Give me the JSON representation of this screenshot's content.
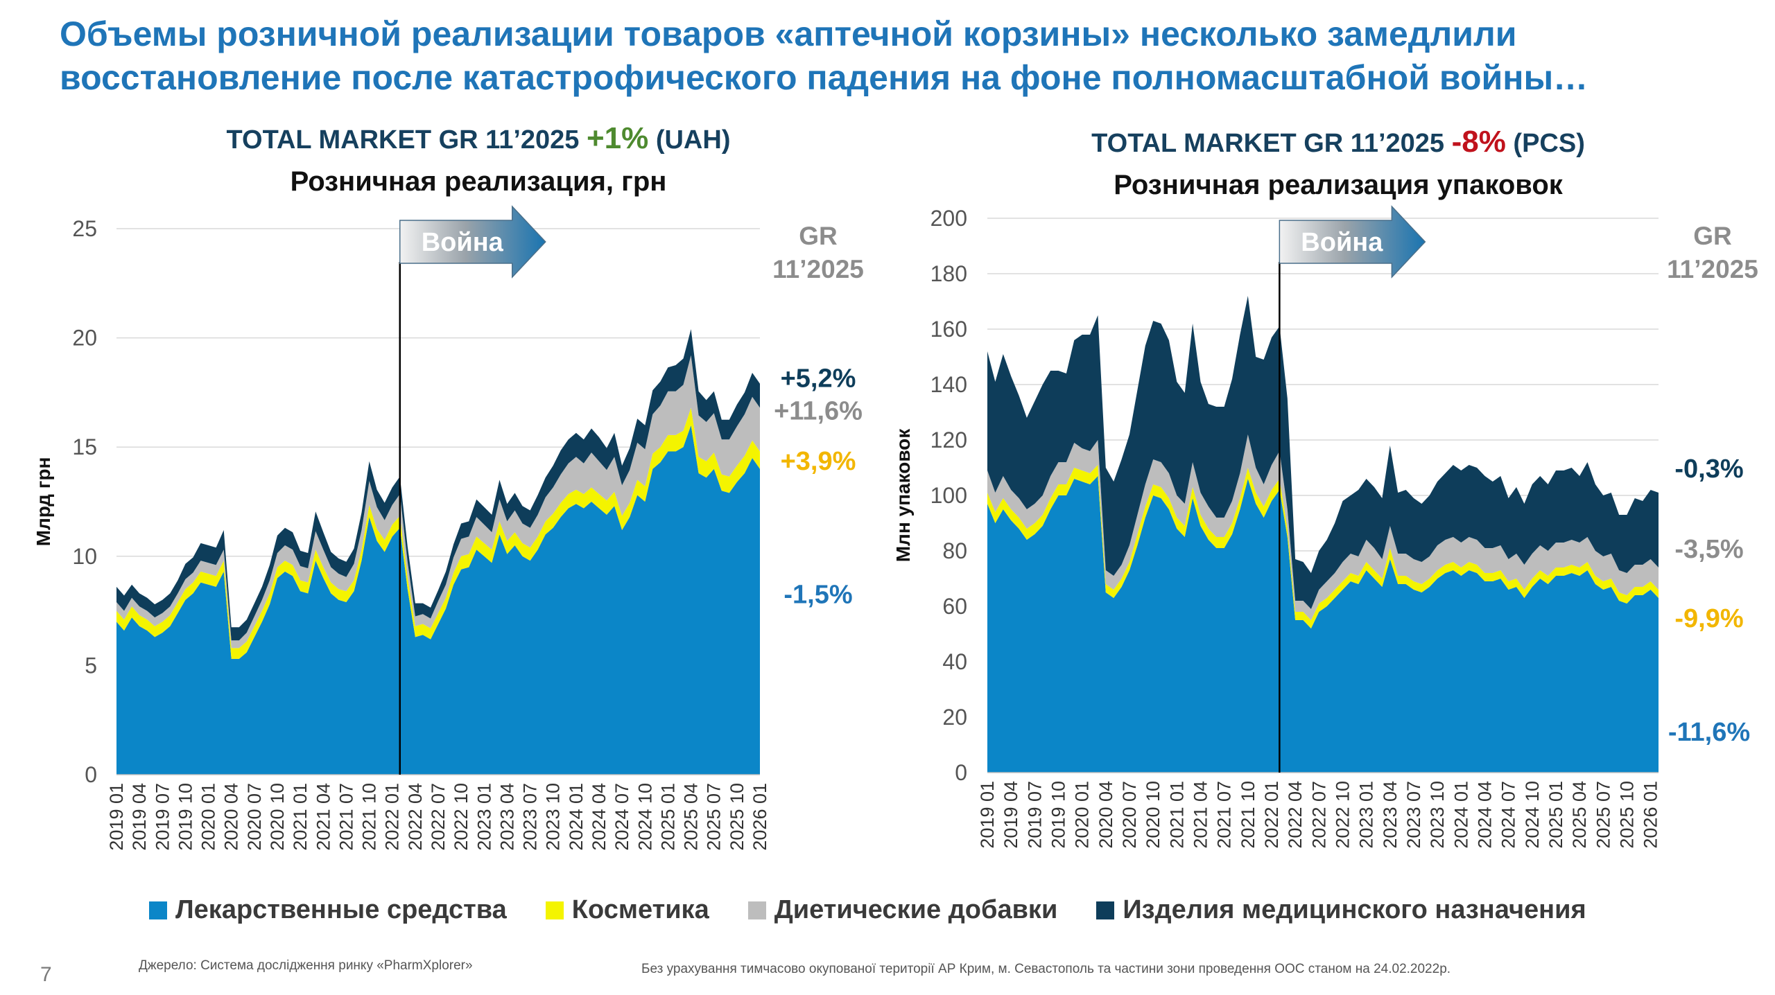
{
  "headline": "Объемы розничной реализации товаров «аптечной корзины» несколько замедлили восстановление после катастрофического падения на фоне полномасштабной войны…",
  "legend": [
    {
      "name": "Лекарственные средства",
      "color": "#0b86c8"
    },
    {
      "name": "Косметика",
      "color": "#f4f400"
    },
    {
      "name": "Диетические добавки",
      "color": "#bdbdbd"
    },
    {
      "name": "Изделия медицинского назначения",
      "color": "#0e3d5a"
    }
  ],
  "footnotes": {
    "source": "Джерело: Система дослідження ринку «PharmXplorer»",
    "note": "Без урахування тимчасово окупованої території АР Крим, м. Севастополь та частини зони проведення ООС станом на 24.02.2022р."
  },
  "page_number": "7",
  "chart_data": [
    {
      "type": "area",
      "stacked": true,
      "title": {
        "prefix": "TOTAL MARKET GR 11’2025 ",
        "value": "+1%",
        "suffix": " (UAH)"
      },
      "subtitle": "Розничная реализация, грн",
      "ylabel": "Млрд грн",
      "ylim": [
        0,
        25
      ],
      "yticks": [
        0,
        5,
        10,
        15,
        20,
        25
      ],
      "grid": true,
      "war_label": "Война",
      "war_index": 37,
      "gr_header": "GR\n11’2025",
      "gr_labels": [
        {
          "text": "+5,2%",
          "series": "Изделия медицинского назначения",
          "color": "#0e3d5a",
          "level": 18.2
        },
        {
          "text": "+11,6%",
          "series": "Диетические добавки",
          "color": "#8c8c8c",
          "level": 16.7
        },
        {
          "text": "+3,9%",
          "series": "Косметика",
          "color": "#f2b600",
          "level": 14.4
        },
        {
          "text": "-1,5%",
          "series": "Лекарственные средства",
          "color": "#1f75b8",
          "level": 8.3
        }
      ],
      "series": [
        {
          "name": "Лекарственные средства",
          "color": "#0b86c8",
          "values": [
            7.0,
            6.6,
            7.2,
            6.8,
            6.6,
            6.3,
            6.5,
            6.8,
            7.4,
            8.0,
            8.3,
            8.8,
            8.7,
            8.6,
            9.3,
            5.3,
            5.3,
            5.6,
            6.3,
            7.0,
            7.8,
            9.0,
            9.3,
            9.1,
            8.4,
            8.3,
            9.8,
            9.0,
            8.3,
            8.0,
            7.9,
            8.4,
            9.8,
            11.8,
            10.7,
            10.2,
            10.9,
            11.3,
            8.5,
            6.3,
            6.4,
            6.2,
            6.9,
            7.6,
            8.7,
            9.4,
            9.5,
            10.3,
            10.0,
            9.7,
            11.0,
            10.1,
            10.5,
            10.0,
            9.8,
            10.3,
            11.0,
            11.3,
            11.8,
            12.2,
            12.4,
            12.2,
            12.5,
            12.2,
            11.9,
            12.3,
            11.2,
            11.8,
            12.8,
            12.5,
            14.0,
            14.3,
            14.8,
            14.8,
            15.0,
            16.0,
            13.8,
            13.6,
            14.0,
            13.0,
            12.9,
            13.4,
            13.8,
            14.5,
            14.0
          ]
        },
        {
          "name": "Косметика",
          "color": "#f4f400",
          "values": [
            0.5,
            0.5,
            0.5,
            0.5,
            0.5,
            0.5,
            0.5,
            0.5,
            0.5,
            0.5,
            0.5,
            0.5,
            0.5,
            0.5,
            0.5,
            0.5,
            0.5,
            0.5,
            0.5,
            0.5,
            0.5,
            0.5,
            0.5,
            0.5,
            0.5,
            0.5,
            0.5,
            0.5,
            0.5,
            0.5,
            0.5,
            0.5,
            0.5,
            0.55,
            0.55,
            0.55,
            0.55,
            0.55,
            0.55,
            0.5,
            0.5,
            0.5,
            0.5,
            0.5,
            0.55,
            0.6,
            0.6,
            0.6,
            0.6,
            0.6,
            0.6,
            0.6,
            0.6,
            0.6,
            0.6,
            0.6,
            0.6,
            0.65,
            0.65,
            0.65,
            0.65,
            0.65,
            0.65,
            0.65,
            0.65,
            0.65,
            0.65,
            0.65,
            0.7,
            0.7,
            0.7,
            0.7,
            0.75,
            0.75,
            0.75,
            0.8,
            0.75,
            0.75,
            0.75,
            0.75,
            0.75,
            0.75,
            0.8,
            0.8,
            0.8
          ]
        },
        {
          "name": "Диетические добавки",
          "color": "#bdbdbd",
          "values": [
            0.4,
            0.4,
            0.4,
            0.4,
            0.4,
            0.4,
            0.4,
            0.4,
            0.4,
            0.45,
            0.45,
            0.5,
            0.5,
            0.5,
            0.5,
            0.35,
            0.35,
            0.4,
            0.45,
            0.5,
            0.6,
            0.65,
            0.7,
            0.7,
            0.65,
            0.65,
            0.85,
            0.8,
            0.7,
            0.7,
            0.65,
            0.75,
            0.9,
            1.1,
            1.0,
            0.9,
            0.9,
            1.0,
            0.7,
            0.45,
            0.45,
            0.45,
            0.55,
            0.6,
            0.7,
            0.8,
            0.8,
            0.9,
            0.85,
            0.8,
            1.0,
            0.9,
            1.0,
            0.9,
            0.9,
            1.0,
            1.1,
            1.2,
            1.3,
            1.4,
            1.5,
            1.4,
            1.6,
            1.5,
            1.4,
            1.6,
            1.4,
            1.5,
            1.7,
            1.7,
            1.8,
            1.9,
            2.0,
            2.0,
            2.1,
            2.4,
            1.9,
            1.8,
            1.8,
            1.6,
            1.7,
            1.8,
            1.9,
            2.0,
            2.0
          ]
        },
        {
          "name": "Изделия медицинского назначения",
          "color": "#0e3d5a",
          "values": [
            0.7,
            0.7,
            0.6,
            0.6,
            0.6,
            0.6,
            0.6,
            0.6,
            0.6,
            0.7,
            0.7,
            0.8,
            0.8,
            0.8,
            0.9,
            0.6,
            0.6,
            0.6,
            0.6,
            0.6,
            0.7,
            0.8,
            0.8,
            0.8,
            0.7,
            0.7,
            0.9,
            0.8,
            0.7,
            0.7,
            0.7,
            0.7,
            0.8,
            0.9,
            0.8,
            0.8,
            0.8,
            0.8,
            0.7,
            0.6,
            0.5,
            0.5,
            0.5,
            0.6,
            0.6,
            0.7,
            0.7,
            0.8,
            0.8,
            0.8,
            0.9,
            0.8,
            0.8,
            0.8,
            0.8,
            0.9,
            0.9,
            1.0,
            1.1,
            1.1,
            1.1,
            1.1,
            1.1,
            1.1,
            1.0,
            1.1,
            0.9,
            1.0,
            1.1,
            1.1,
            1.1,
            1.1,
            1.1,
            1.2,
            1.2,
            1.2,
            1.1,
            1.0,
            1.0,
            0.9,
            0.9,
            1.0,
            1.0,
            1.1,
            1.1
          ]
        }
      ]
    },
    {
      "type": "area",
      "stacked": true,
      "title": {
        "prefix": "TOTAL MARKET GR 11’2025 ",
        "value": "-8%",
        "suffix": " (PCS)"
      },
      "subtitle": "Розничная реализация упаковок",
      "ylabel": "Млн упаковок",
      "ylim": [
        0,
        200
      ],
      "yticks": [
        0,
        20,
        40,
        60,
        80,
        100,
        120,
        140,
        160,
        180,
        200
      ],
      "grid": true,
      "war_label": "Война",
      "war_index": 37,
      "gr_header": "GR\n11’2025",
      "gr_labels": [
        {
          "text": "-0,3%",
          "series": "Изделия медицинского назначения",
          "color": "#0e3d5a",
          "level": 110
        },
        {
          "text": "-3,5%",
          "series": "Диетические добавки",
          "color": "#8c8c8c",
          "level": 81
        },
        {
          "text": "-9,9%",
          "series": "Косметика",
          "color": "#f2b600",
          "level": 56
        },
        {
          "text": "-11,6%",
          "series": "Лекарственные средства",
          "color": "#1f75b8",
          "level": 15
        }
      ],
      "series": [
        {
          "name": "Лекарственные средства",
          "color": "#0b86c8",
          "values": [
            97,
            90,
            95,
            91,
            88,
            84,
            86,
            89,
            95,
            100,
            100,
            106,
            105,
            104,
            107,
            65,
            63,
            67,
            73,
            82,
            92,
            100,
            99,
            95,
            88,
            85,
            99,
            89,
            84,
            81,
            81,
            86,
            95,
            106,
            97,
            92,
            98,
            102,
            85,
            55,
            55,
            52,
            58,
            60,
            63,
            66,
            69,
            68,
            73,
            70,
            67,
            77,
            68,
            68,
            66,
            65,
            67,
            70,
            72,
            73,
            71,
            73,
            72,
            69,
            69,
            70,
            66,
            67,
            63,
            67,
            70,
            68,
            71,
            71,
            72,
            71,
            73,
            68,
            66,
            67,
            62,
            61,
            64,
            64,
            66,
            63
          ]
        },
        {
          "name": "Косметика",
          "color": "#f4f400",
          "values": [
            4,
            4,
            4,
            4,
            4,
            4,
            4,
            4,
            4,
            4,
            4,
            4,
            4,
            4,
            4,
            3,
            3,
            3,
            3,
            4,
            4,
            4,
            4,
            4,
            4,
            4,
            4,
            4,
            4,
            4,
            4,
            4,
            4,
            4,
            4,
            4,
            4,
            4,
            3,
            3,
            3,
            3,
            3,
            3,
            3,
            3,
            3,
            3,
            3,
            3,
            3,
            4,
            3,
            3,
            3,
            3,
            3,
            3,
            3,
            3,
            3,
            3,
            3,
            3,
            3,
            3,
            3,
            3,
            3,
            3,
            3,
            3,
            3,
            3,
            3,
            3,
            3,
            3,
            3,
            3,
            3,
            3,
            3,
            3,
            3,
            3
          ]
        },
        {
          "name": "Диетические добавки",
          "color": "#bdbdbd",
          "values": [
            8,
            7,
            8,
            7,
            7,
            7,
            7,
            7,
            8,
            8,
            8,
            9,
            8,
            8,
            9,
            5,
            5,
            5,
            6,
            7,
            8,
            9,
            9,
            9,
            8,
            8,
            9,
            8,
            8,
            7,
            7,
            8,
            9,
            12,
            9,
            8,
            9,
            10,
            7,
            4,
            4,
            4,
            5,
            6,
            6,
            7,
            7,
            7,
            8,
            8,
            7,
            8,
            8,
            8,
            8,
            8,
            8,
            9,
            9,
            9,
            9,
            9,
            9,
            9,
            9,
            9,
            8,
            9,
            9,
            9,
            9,
            9,
            9,
            9,
            9,
            9,
            9,
            9,
            9,
            9,
            8,
            8,
            8,
            8,
            8,
            8
          ]
        },
        {
          "name": "Изделия медицинского назначения",
          "color": "#0e3d5a",
          "values": [
            43,
            40,
            44,
            41,
            37,
            33,
            37,
            40,
            38,
            33,
            32,
            37,
            41,
            42,
            45,
            37,
            34,
            38,
            40,
            45,
            50,
            50,
            50,
            48,
            41,
            40,
            50,
            40,
            37,
            40,
            40,
            44,
            50,
            50,
            40,
            45,
            46,
            45,
            40,
            15,
            14,
            13,
            14,
            15,
            18,
            22,
            21,
            24,
            22,
            22,
            22,
            29,
            22,
            23,
            22,
            21,
            22,
            23,
            24,
            26,
            26,
            26,
            26,
            26,
            24,
            25,
            22,
            24,
            22,
            25,
            25,
            24,
            26,
            26,
            26,
            24,
            27,
            24,
            22,
            22,
            20,
            21,
            24,
            23,
            25,
            27
          ]
        }
      ]
    }
  ]
}
